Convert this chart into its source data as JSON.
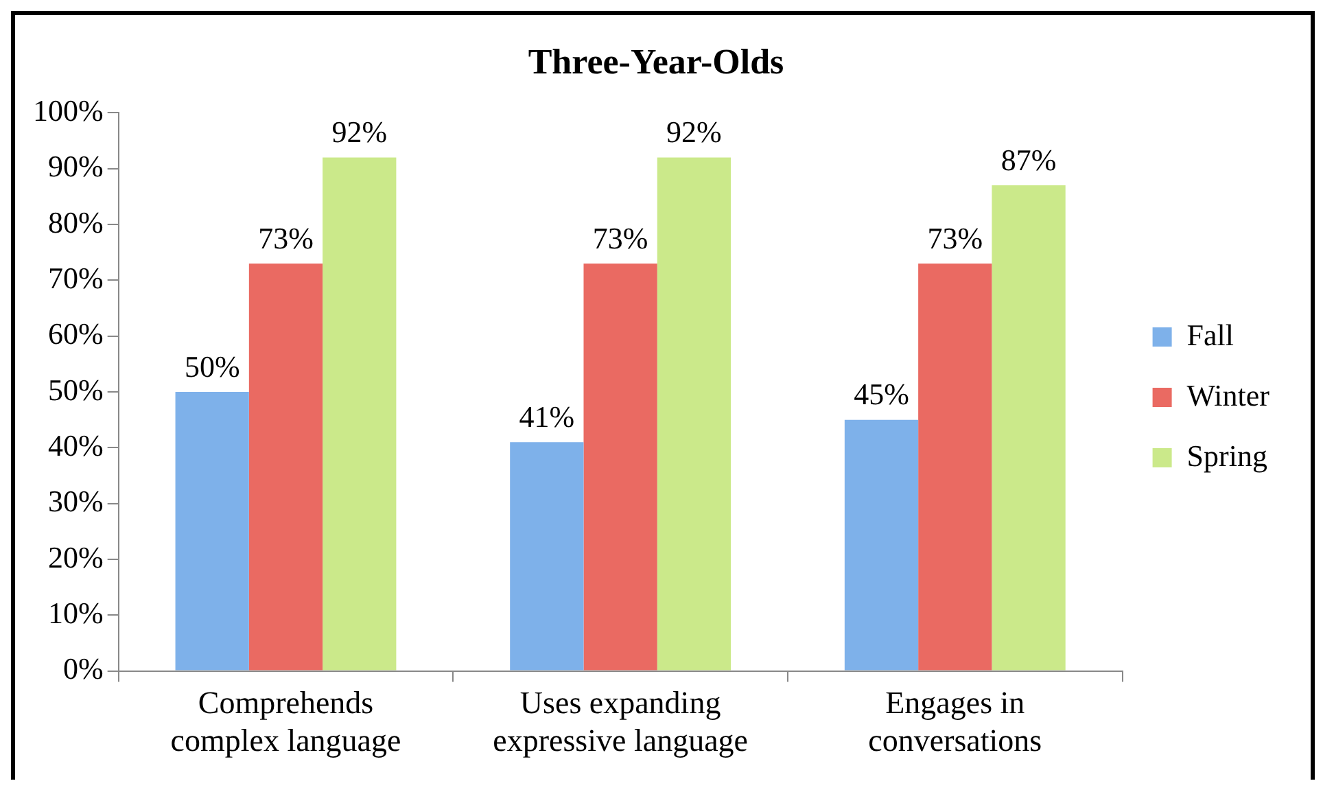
{
  "chart_data": {
    "type": "bar",
    "title": "Three-Year-Olds",
    "categories": [
      "Comprehends complex language",
      "Uses expanding expressive language",
      "Engages in conversations"
    ],
    "series": [
      {
        "name": "Fall",
        "color": "#7eb1ea",
        "values": [
          50,
          41,
          45
        ],
        "value_labels": [
          "50%",
          "41%",
          "45%"
        ]
      },
      {
        "name": "Winter",
        "color": "#ea6a62",
        "values": [
          73,
          73,
          73
        ],
        "value_labels": [
          "73%",
          "73%",
          "73%"
        ]
      },
      {
        "name": "Spring",
        "color": "#cbe98a",
        "values": [
          92,
          92,
          87
        ],
        "value_labels": [
          "92%",
          "92%",
          "87%"
        ]
      }
    ],
    "ylim": [
      0,
      100
    ],
    "yticks": [
      {
        "value": 0,
        "label": "0%"
      },
      {
        "value": 10,
        "label": "10%"
      },
      {
        "value": 20,
        "label": "20%"
      },
      {
        "value": 30,
        "label": "30%"
      },
      {
        "value": 40,
        "label": "40%"
      },
      {
        "value": 50,
        "label": "50%"
      },
      {
        "value": 60,
        "label": "60%"
      },
      {
        "value": 70,
        "label": "70%"
      },
      {
        "value": 80,
        "label": "80%"
      },
      {
        "value": 90,
        "label": "90%"
      },
      {
        "value": 100,
        "label": "100%"
      }
    ],
    "grid": false,
    "legend": "right"
  }
}
